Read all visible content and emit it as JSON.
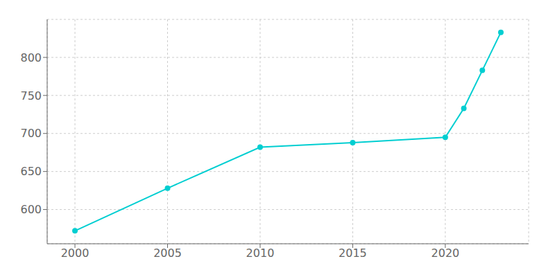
{
  "chart_data": {
    "type": "line",
    "x": [
      2000,
      2005,
      2010,
      2015,
      2020,
      2021,
      2022,
      2023
    ],
    "values": [
      572,
      628,
      682,
      688,
      695,
      733,
      783,
      833
    ],
    "color": "#00CED1",
    "marker": "circle",
    "xlim": [
      1998.5,
      2024.5
    ],
    "ylim": [
      555,
      850
    ],
    "xticks": [
      2000,
      2005,
      2010,
      2015,
      2020
    ],
    "yticks": [
      600,
      650,
      700,
      750,
      800
    ],
    "grid": true
  }
}
